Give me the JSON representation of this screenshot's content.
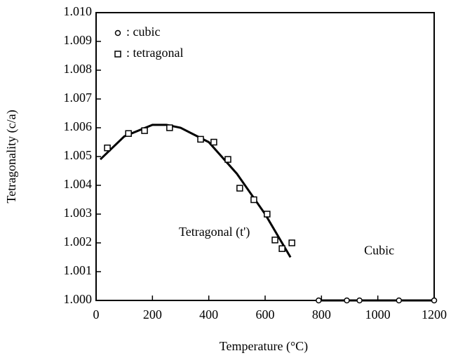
{
  "chart_data": {
    "type": "scatter",
    "xlabel": "Temperature (°C)",
    "ylabel": "Tetragonality (c/a)",
    "xlim": [
      0,
      1200
    ],
    "xticks": [
      0,
      200,
      400,
      600,
      800,
      1000,
      1200
    ],
    "ylim": [
      1.0,
      1.01
    ],
    "yticks": [
      {
        "value": 1.0,
        "label": "1.000"
      },
      1.001,
      1.002,
      1.003,
      1.004,
      1.005,
      1.006,
      1.007,
      1.008,
      1.009,
      {
        "value": 1.01,
        "label": "1.010"
      }
    ],
    "series": [
      {
        "name": ": cubic",
        "marker": "circle",
        "color": "#000",
        "x": [
          790,
          890,
          935,
          1075,
          1200
        ],
        "values": [
          1.0,
          1.0,
          1.0,
          1.0,
          1.0
        ]
      },
      {
        "name": ": tetragonal",
        "marker": "square",
        "color": "#000",
        "x": [
          40,
          115,
          172,
          261,
          371,
          418,
          468,
          510,
          560,
          607,
          635,
          660,
          695
        ],
        "values": [
          1.0053,
          1.0058,
          1.0059,
          1.006,
          1.0056,
          1.0055,
          1.0049,
          1.0039,
          1.0035,
          1.003,
          1.0021,
          1.0018,
          1.002
        ]
      }
    ],
    "fits": [
      {
        "x": [
          15,
          100,
          200,
          250,
          300,
          400,
          500,
          600,
          690
        ],
        "values": [
          1.0049,
          1.0057,
          1.0061,
          1.0061,
          1.006,
          1.0055,
          1.0044,
          1.003,
          1.0015
        ]
      },
      {
        "x": [
          790,
          1200
        ],
        "values": [
          1.0,
          1.0
        ]
      }
    ],
    "annotations": [
      {
        "text": "Tetragonal (t')",
        "x": 420,
        "y": 1.00235
      },
      {
        "text": "Cubic",
        "x": 1005,
        "y": 1.0017
      }
    ]
  }
}
